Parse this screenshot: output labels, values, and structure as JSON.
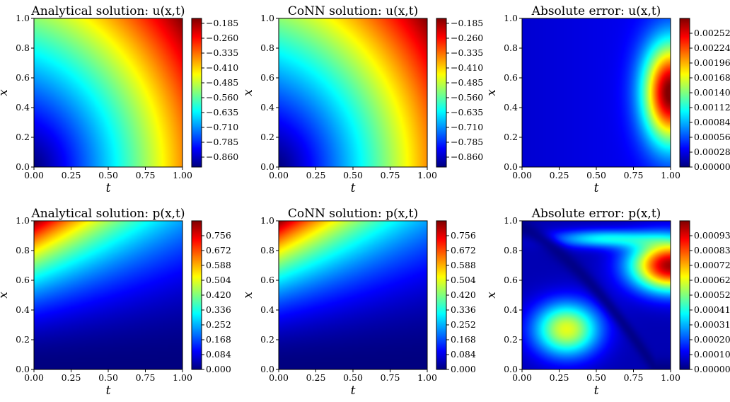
{
  "figure": {
    "rows": 2,
    "cols": 3
  },
  "chart_data": [
    {
      "type": "heatmap",
      "title": "Analytical solution: u(x,t)",
      "xlabel": "t",
      "ylabel": "x",
      "xlim": [
        0,
        1
      ],
      "ylim": [
        0,
        1
      ],
      "xticks": [
        "0.00",
        "0.25",
        "0.50",
        "0.75",
        "1.00"
      ],
      "yticks": [
        "0.0",
        "0.2",
        "0.4",
        "0.6",
        "0.8",
        "1.0"
      ],
      "colormap": "jet",
      "field": "u",
      "value_range": [
        -0.91,
        -0.16
      ],
      "colorbar_ticks": [
        "−0.185",
        "−0.260",
        "−0.335",
        "−0.410",
        "−0.485",
        "−0.560",
        "−0.635",
        "−0.710",
        "−0.785",
        "−0.860"
      ],
      "colorbar_values": [
        -0.185,
        -0.26,
        -0.335,
        -0.41,
        -0.485,
        -0.56,
        -0.635,
        -0.71,
        -0.785,
        -0.86
      ]
    },
    {
      "type": "heatmap",
      "title": "CoNN solution: u(x,t)",
      "xlabel": "t",
      "ylabel": "x",
      "xlim": [
        0,
        1
      ],
      "ylim": [
        0,
        1
      ],
      "xticks": [
        "0.00",
        "0.25",
        "0.50",
        "0.75",
        "1.00"
      ],
      "yticks": [
        "0.0",
        "0.2",
        "0.4",
        "0.6",
        "0.8",
        "1.0"
      ],
      "colormap": "jet",
      "field": "u",
      "value_range": [
        -0.91,
        -0.16
      ],
      "colorbar_ticks": [
        "−0.185",
        "−0.260",
        "−0.335",
        "−0.410",
        "−0.485",
        "−0.560",
        "−0.635",
        "−0.710",
        "−0.785",
        "−0.860"
      ],
      "colorbar_values": [
        -0.185,
        -0.26,
        -0.335,
        -0.41,
        -0.485,
        -0.56,
        -0.635,
        -0.71,
        -0.785,
        -0.86
      ]
    },
    {
      "type": "heatmap",
      "title": "Absolute error: u(x,t)",
      "xlabel": "t",
      "ylabel": "x",
      "xlim": [
        0,
        1
      ],
      "ylim": [
        0,
        1
      ],
      "xticks": [
        "0.00",
        "0.25",
        "0.50",
        "0.75",
        "1.00"
      ],
      "yticks": [
        "0.0",
        "0.2",
        "0.4",
        "0.6",
        "0.8",
        "1.0"
      ],
      "colormap": "jet",
      "field": "err_u",
      "value_range": [
        0,
        0.0028
      ],
      "colorbar_ticks": [
        "0.00252",
        "0.00224",
        "0.00196",
        "0.00168",
        "0.00140",
        "0.00112",
        "0.00084",
        "0.00056",
        "0.00028",
        "0.00000"
      ],
      "colorbar_values": [
        0.00252,
        0.00224,
        0.00196,
        0.00168,
        0.0014,
        0.00112,
        0.00084,
        0.00056,
        0.00028,
        0
      ]
    },
    {
      "type": "heatmap",
      "title": "Analytical solution: p(x,t)",
      "xlabel": "t",
      "ylabel": "x",
      "xlim": [
        0,
        1
      ],
      "ylim": [
        0,
        1
      ],
      "xticks": [
        "0.00",
        "0.25",
        "0.50",
        "0.75",
        "1.00"
      ],
      "yticks": [
        "0.0",
        "0.2",
        "0.4",
        "0.6",
        "0.8",
        "1.0"
      ],
      "colormap": "jet",
      "field": "p",
      "value_range": [
        0,
        0.84
      ],
      "colorbar_ticks": [
        "0.756",
        "0.672",
        "0.588",
        "0.504",
        "0.420",
        "0.336",
        "0.252",
        "0.168",
        "0.084",
        "0.000"
      ],
      "colorbar_values": [
        0.756,
        0.672,
        0.588,
        0.504,
        0.42,
        0.336,
        0.252,
        0.168,
        0.084,
        0
      ]
    },
    {
      "type": "heatmap",
      "title": "CoNN solution: p(x,t)",
      "xlabel": "t",
      "ylabel": "x",
      "xlim": [
        0,
        1
      ],
      "ylim": [
        0,
        1
      ],
      "xticks": [
        "0.00",
        "0.25",
        "0.50",
        "0.75",
        "1.00"
      ],
      "yticks": [
        "0.0",
        "0.2",
        "0.4",
        "0.6",
        "0.8",
        "1.0"
      ],
      "colormap": "jet",
      "field": "p",
      "value_range": [
        0,
        0.84
      ],
      "colorbar_ticks": [
        "0.756",
        "0.672",
        "0.588",
        "0.504",
        "0.420",
        "0.336",
        "0.252",
        "0.168",
        "0.084",
        "0.000"
      ],
      "colorbar_values": [
        0.756,
        0.672,
        0.588,
        0.504,
        0.42,
        0.336,
        0.252,
        0.168,
        0.084,
        0
      ]
    },
    {
      "type": "heatmap",
      "title": "Absolute error: p(x,t)",
      "xlabel": "t",
      "ylabel": "x",
      "xlim": [
        0,
        1
      ],
      "ylim": [
        0,
        1
      ],
      "xticks": [
        "0.00",
        "0.25",
        "0.50",
        "0.75",
        "1.00"
      ],
      "yticks": [
        "0.0",
        "0.2",
        "0.4",
        "0.6",
        "0.8",
        "1.0"
      ],
      "colormap": "jet",
      "field": "err_p",
      "value_range": [
        0,
        0.00104
      ],
      "colorbar_ticks": [
        "0.000936",
        "0.000832",
        "0.000728",
        "0.000624",
        "0.000520",
        "0.000416",
        "0.000312",
        "0.000208",
        "0.000104",
        "0.000000"
      ],
      "colorbar_values": [
        0.000936,
        0.000832,
        0.000728,
        0.000624,
        0.00052,
        0.000416,
        0.000312,
        0.000208,
        0.000104,
        0
      ]
    }
  ]
}
